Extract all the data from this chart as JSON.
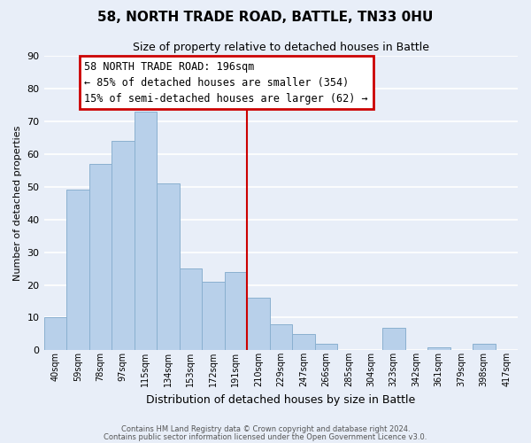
{
  "title": "58, NORTH TRADE ROAD, BATTLE, TN33 0HU",
  "subtitle": "Size of property relative to detached houses in Battle",
  "xlabel": "Distribution of detached houses by size in Battle",
  "ylabel": "Number of detached properties",
  "bar_labels": [
    "40sqm",
    "59sqm",
    "78sqm",
    "97sqm",
    "115sqm",
    "134sqm",
    "153sqm",
    "172sqm",
    "191sqm",
    "210sqm",
    "229sqm",
    "247sqm",
    "266sqm",
    "285sqm",
    "304sqm",
    "323sqm",
    "342sqm",
    "361sqm",
    "379sqm",
    "398sqm",
    "417sqm"
  ],
  "bar_values": [
    10,
    49,
    57,
    64,
    73,
    51,
    25,
    21,
    24,
    16,
    8,
    5,
    2,
    0,
    0,
    7,
    0,
    1,
    0,
    2,
    0
  ],
  "bar_color": "#b8d0ea",
  "bar_edge_color": "#8ab0d0",
  "background_color": "#e8eef8",
  "grid_color": "#ffffff",
  "vline_x_index": 8,
  "vline_color": "#cc0000",
  "ylim": [
    0,
    90
  ],
  "yticks": [
    0,
    10,
    20,
    30,
    40,
    50,
    60,
    70,
    80,
    90
  ],
  "annotation_title": "58 NORTH TRADE ROAD: 196sqm",
  "annotation_line1": "← 85% of detached houses are smaller (354)",
  "annotation_line2": "15% of semi-detached houses are larger (62) →",
  "annotation_box_color": "#ffffff",
  "annotation_box_edge": "#cc0000",
  "footer1": "Contains HM Land Registry data © Crown copyright and database right 2024.",
  "footer2": "Contains public sector information licensed under the Open Government Licence v3.0."
}
